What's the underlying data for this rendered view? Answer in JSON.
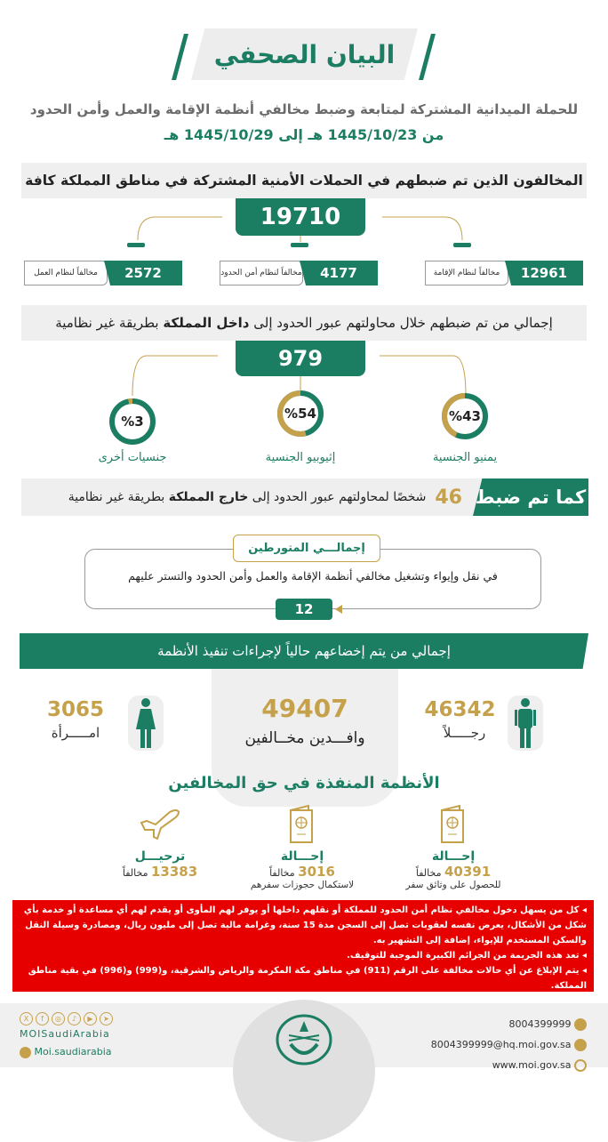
{
  "header": {
    "title": "البيان الصحفي",
    "subtitle": "للحملة الميدانية المشتركة لمتابعة وضبط مخالفي أنظمة الإقامة والعمل وأمن الحدود",
    "date_range": "من 1445/10/23 هـ إلى 1445/10/29 هـ"
  },
  "section1": {
    "title": "المخالفون الذين تم ضبطهم في الحملات الأمنية المشتركة في مناطق المملكة كافة",
    "total": "19710",
    "items": [
      {
        "value": "12961",
        "label": "مخالفاً لنظام الإقامة"
      },
      {
        "value": "4177",
        "label": "مخالفاً لنظام أمن الحدود"
      },
      {
        "value": "2572",
        "label": "مخالفاً لنظام العمل"
      }
    ]
  },
  "section2": {
    "title_pre": "إجمالي من تم ضبطهم خلال محاولتهم عبور الحدود إلى ",
    "title_bold": "داخل المملكة",
    "title_post": " بطريقة غير نظامية",
    "total": "979",
    "nationalities": [
      {
        "percent": 43,
        "text": "%43",
        "label": "يمنيو الجنسية"
      },
      {
        "percent": 54,
        "text": "%54",
        "label": "إثيوبيو الجنسية"
      },
      {
        "percent": 3,
        "text": "%3",
        "label": "جنسيات أخرى"
      }
    ]
  },
  "section3": {
    "tag": "كما تم ضبط",
    "count": "46",
    "text_pre": "شخصًا لمحاولتهم عبور الحدود إلى ",
    "text_bold": "خارج المملكة",
    "text_post": " بطريقة غير نظامية"
  },
  "involved": {
    "label": "إجمالـــي المتورطين",
    "text": "في نقل وإيواء وتشغيل مخالفي أنظمة الإقامة والعمل وأمن الحدود والتستر عليهم",
    "count": "12"
  },
  "section4": {
    "title": "إجمالي من يتم إخضاعهم حالياً لإجراءات تنفيذ الأنظمة",
    "total": "49407",
    "total_label": "وافـــدين مخــالفين",
    "men": "46342",
    "men_label": "رجـــــلاً",
    "women": "3065",
    "women_label": "امـــــرأة"
  },
  "section5": {
    "title": "الأنظمة المنفذة في حق المخالفين",
    "items": [
      {
        "icon": "passport-icon",
        "title": "إحـــالة",
        "value": "40391",
        "unit": "مخالفاً",
        "note": "للحصول على وثائق سفر"
      },
      {
        "icon": "passport-icon",
        "title": "إحـــالة",
        "value": "3016",
        "unit": "مخالفاً",
        "note": "لاستكمال حجوزات سفرهم"
      },
      {
        "icon": "airplane-icon",
        "title": "ترحيـــل",
        "value": "13383",
        "unit": "مخالفاً",
        "note": ""
      }
    ]
  },
  "warnings": [
    "كل من يسهل دخول مخالفي نظام أمن الحدود للمملكة أو نقلهم داخلها أو يوفر لهم المأوى أو يقدم لهم أي مساعدة أو خدمة بأي شكل من الأشكال، يعرض نفسه لعقوبات تصل إلى السجن مدة 15 سنة، وغرامة مالية تصل إلى مليون ريال، ومصادرة وسيلة النقل والسكن المستخدم للإيواء، إضافة إلى التشهير به.",
    "تعد هذه الجريمة من الجرائم الكبيرة الموجبة للتوقيف.",
    "يتم الإبلاغ عن أي حالات مخالفة على الرقم (911) في مناطق مكة المكرمة والرياض والشرقية، و(999) و(996) في بقية مناطق المملكة."
  ],
  "footer": {
    "phone": "8004399999",
    "email": "8004399999@hq.moi.gov.sa",
    "website": "www.moi.gov.sa",
    "social_handle": "MOISaudiArabia",
    "snapchat": "Moi.saudiarabia",
    "social_icons": [
      "x-icon",
      "facebook-icon",
      "instagram-icon",
      "tiktok-icon",
      "youtube-icon",
      "telegram-icon"
    ]
  },
  "colors": {
    "green": "#1b7d62",
    "gold": "#c6a14b",
    "red": "#e60000",
    "gray": "#efefef"
  }
}
